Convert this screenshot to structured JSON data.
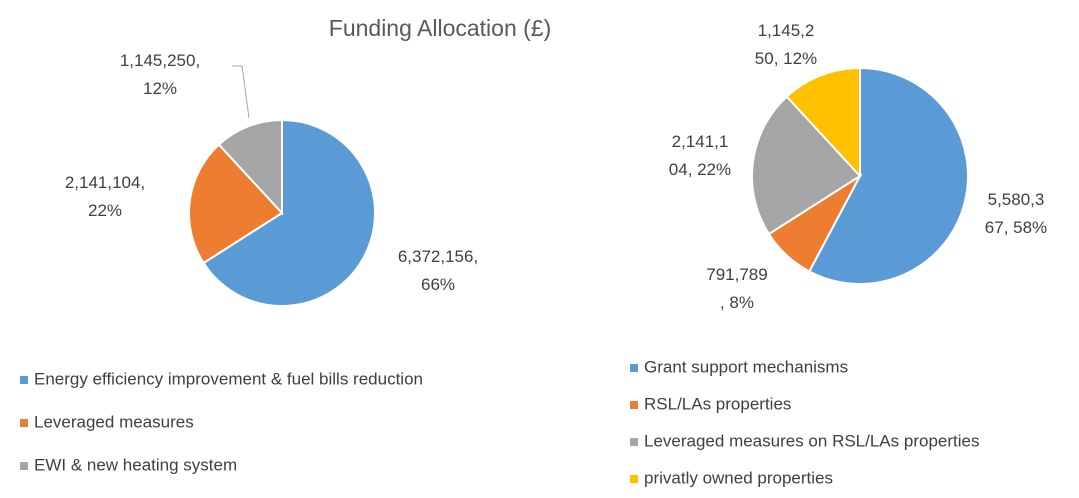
{
  "chart_data": [
    {
      "type": "pie",
      "title": "Funding Allocation (£)",
      "categories": [
        "Energy efficiency improvement & fuel bills reduction",
        "Leveraged measures",
        "EWI & new heating system"
      ],
      "values": [
        6372156,
        2141104,
        1145250
      ],
      "value_labels": [
        "6,372,156,\n66%",
        "2,141,104,\n22%",
        "1,145,250,\n12%"
      ],
      "colors": [
        "#5b9bd5",
        "#ed7d31",
        "#a5a5a5"
      ]
    },
    {
      "type": "pie",
      "categories": [
        "Grant support mechanisms",
        "RSL/LAs properties",
        "Leveraged measures on RSL/LAs properties",
        "privatly owned properties"
      ],
      "values": [
        5580367,
        791789,
        2141104,
        1145250
      ],
      "value_labels": [
        "5,580,3\n67, 58%",
        "791,789\n, 8%",
        "2,141,1\n04, 22%",
        "1,145,2\n50, 12%"
      ],
      "colors": [
        "#5b9bd5",
        "#ed7d31",
        "#a5a5a5",
        "#ffc000"
      ]
    }
  ]
}
